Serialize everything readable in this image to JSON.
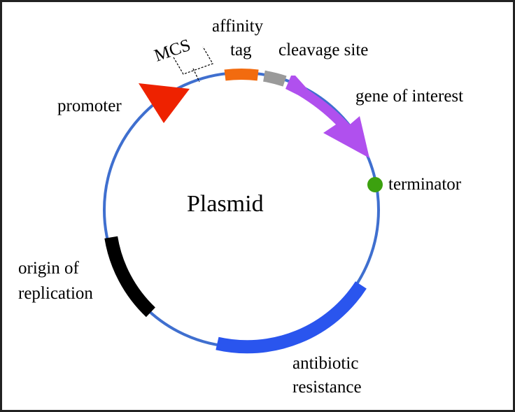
{
  "title": "Plasmid",
  "labels": {
    "mcs": "MCS",
    "affinity_tag_line1": "affinity",
    "affinity_tag_line2": "tag",
    "cleavage_site": "cleavage site",
    "gene_of_interest": "gene of interest",
    "promoter": "promoter",
    "terminator": "terminator",
    "origin_line1": "origin of",
    "origin_line2": "replication",
    "antibiotic_line1": "antibiotic",
    "antibiotic_line2": "resistance"
  },
  "colors": {
    "backbone": "#3f6fcf",
    "promoter": "#ee2200",
    "affinity_tag": "#f26b0f",
    "cleavage_site": "#9a9a9a",
    "gene_of_interest": "#b050ee",
    "terminator": "#3ca10f",
    "origin_of_replication": "#000000",
    "antibiotic_resistance": "#2a55ee",
    "frame_border": "#222222"
  }
}
